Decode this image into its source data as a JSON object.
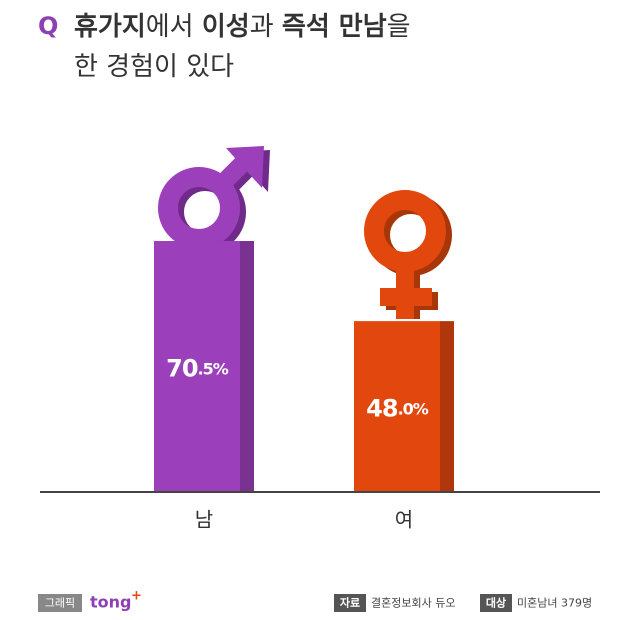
{
  "chart_data": {
    "type": "bar",
    "title_marker": "Q",
    "title": [
      [
        {
          "text": "휴가지",
          "bold": true
        },
        {
          "text": "에서 ",
          "bold": false
        },
        {
          "text": "이성",
          "bold": true
        },
        {
          "text": "과 ",
          "bold": false
        },
        {
          "text": "즉석 만남",
          "bold": true
        },
        {
          "text": "을",
          "bold": false
        }
      ],
      [
        {
          "text": "한 경험이 있다",
          "bold": false
        }
      ]
    ],
    "categories": [
      "남",
      "여"
    ],
    "values": [
      70.5,
      48.0
    ],
    "value_labels": [
      "70.5%",
      "48.0%"
    ],
    "colors": [
      "#9b3fbb",
      "#e2470e"
    ],
    "ylim": [
      0,
      100
    ],
    "footer": {
      "graphic_tag": "그래픽",
      "brand": "tong",
      "brand_mark": "+",
      "source_tag": "자료",
      "source": "결혼정보회사 듀오",
      "target_tag": "대상",
      "target": "미혼남녀 379명"
    }
  }
}
